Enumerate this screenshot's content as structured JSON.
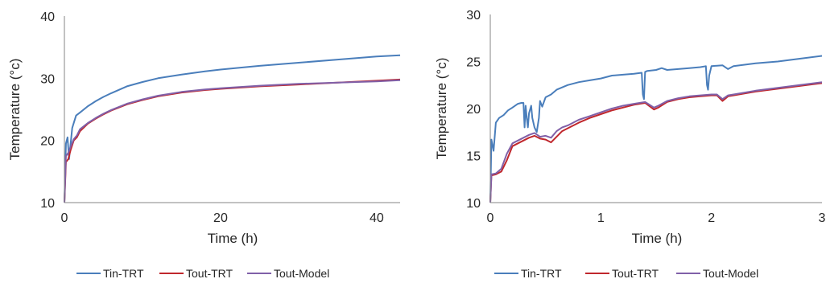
{
  "chart_data": [
    {
      "type": "line",
      "xlabel": "Time (h)",
      "ylabel": "Temperature (°c)",
      "xlim": [
        0,
        43
      ],
      "ylim": [
        10,
        40
      ],
      "xticks": [
        0,
        20,
        40
      ],
      "yticks": [
        10,
        20,
        30,
        40
      ],
      "grid": false,
      "legend_position": "bottom",
      "series": [
        {
          "name": "Tin-TRT",
          "color": "#4a7ebb",
          "x": [
            0,
            0.2,
            0.4,
            0.6,
            1.0,
            1.5,
            2,
            3,
            4,
            5,
            6,
            8,
            10,
            12,
            15,
            18,
            20,
            25,
            30,
            35,
            40,
            43
          ],
          "y": [
            10,
            19.5,
            20.5,
            17,
            22,
            24,
            24.5,
            25.5,
            26.3,
            27,
            27.6,
            28.7,
            29.4,
            30,
            30.6,
            31.1,
            31.4,
            32,
            32.5,
            33,
            33.5,
            33.7
          ]
        },
        {
          "name": "Tout-TRT",
          "color": "#c0272d",
          "x": [
            0,
            0.2,
            0.5,
            0.8,
            1.2,
            1.6,
            2,
            3,
            4,
            5,
            6,
            8,
            10,
            12,
            15,
            18,
            20,
            25,
            30,
            35,
            40,
            43
          ],
          "y": [
            10,
            16.5,
            17,
            18.5,
            20,
            20.5,
            21.5,
            22.7,
            23.5,
            24.2,
            24.8,
            25.8,
            26.5,
            27.1,
            27.7,
            28.1,
            28.3,
            28.7,
            29,
            29.3,
            29.6,
            29.8
          ]
        },
        {
          "name": "Tout-Model",
          "color": "#8060a8",
          "x": [
            0,
            0.2,
            0.5,
            0.8,
            1.2,
            1.6,
            2,
            3,
            4,
            5,
            6,
            8,
            10,
            12,
            15,
            18,
            20,
            25,
            30,
            35,
            40,
            43
          ],
          "y": [
            10,
            17.5,
            18,
            19,
            20.2,
            20.8,
            21.8,
            22.8,
            23.6,
            24.3,
            24.9,
            25.9,
            26.6,
            27.2,
            27.8,
            28.2,
            28.4,
            28.8,
            29.1,
            29.3,
            29.5,
            29.7
          ]
        }
      ]
    },
    {
      "type": "line",
      "xlabel": "Time (h)",
      "ylabel": "Temperature (°c)",
      "xlim": [
        0,
        3
      ],
      "ylim": [
        10,
        30
      ],
      "xticks": [
        0,
        1,
        2,
        3
      ],
      "yticks": [
        10,
        15,
        20,
        25,
        30
      ],
      "grid": false,
      "legend_position": "bottom",
      "series": [
        {
          "name": "Tin-TRT",
          "color": "#4a7ebb",
          "x": [
            0,
            0.01,
            0.03,
            0.05,
            0.08,
            0.12,
            0.16,
            0.2,
            0.25,
            0.28,
            0.3,
            0.31,
            0.32,
            0.33,
            0.34,
            0.35,
            0.37,
            0.38,
            0.4,
            0.42,
            0.44,
            0.45,
            0.47,
            0.5,
            0.55,
            0.6,
            0.7,
            0.8,
            0.9,
            1.0,
            1.1,
            1.2,
            1.3,
            1.37,
            1.38,
            1.39,
            1.4,
            1.42,
            1.5,
            1.55,
            1.6,
            1.7,
            1.8,
            1.9,
            1.95,
            1.96,
            1.97,
            1.98,
            2.0,
            2.1,
            2.15,
            2.2,
            2.4,
            2.6,
            2.8,
            3.0
          ],
          "y": [
            10,
            16.7,
            15.5,
            18.5,
            19,
            19.3,
            19.8,
            20.1,
            20.5,
            20.6,
            20.6,
            18.0,
            20.3,
            19.0,
            18.0,
            19.5,
            20.3,
            19.0,
            18.0,
            17.5,
            19.0,
            20.8,
            20.2,
            21.2,
            21.5,
            22.0,
            22.5,
            22.8,
            23.0,
            23.2,
            23.5,
            23.6,
            23.7,
            23.8,
            21.5,
            21.0,
            23.9,
            24.0,
            24.1,
            24.3,
            24.1,
            24.2,
            24.3,
            24.4,
            24.5,
            22.5,
            22.0,
            23.5,
            24.5,
            24.6,
            24.2,
            24.5,
            24.8,
            25.0,
            25.3,
            25.6
          ]
        },
        {
          "name": "Tout-TRT",
          "color": "#c0272d",
          "x": [
            0,
            0.01,
            0.05,
            0.1,
            0.15,
            0.2,
            0.25,
            0.3,
            0.35,
            0.4,
            0.45,
            0.5,
            0.55,
            0.6,
            0.65,
            0.7,
            0.8,
            0.9,
            1.0,
            1.1,
            1.2,
            1.3,
            1.4,
            1.48,
            1.52,
            1.6,
            1.7,
            1.8,
            1.9,
            2.0,
            2.05,
            2.1,
            2.15,
            2.2,
            2.4,
            2.6,
            2.8,
            3.0
          ],
          "y": [
            10,
            12.9,
            13.0,
            13.3,
            14.5,
            16.0,
            16.3,
            16.6,
            16.9,
            17.1,
            16.8,
            16.7,
            16.4,
            17.0,
            17.6,
            17.9,
            18.5,
            19.0,
            19.4,
            19.8,
            20.1,
            20.4,
            20.6,
            19.9,
            20.1,
            20.7,
            21.0,
            21.2,
            21.3,
            21.4,
            21.4,
            20.8,
            21.3,
            21.4,
            21.8,
            22.1,
            22.4,
            22.7
          ]
        },
        {
          "name": "Tout-Model",
          "color": "#8060a8",
          "x": [
            0,
            0.01,
            0.05,
            0.1,
            0.15,
            0.2,
            0.25,
            0.3,
            0.35,
            0.4,
            0.45,
            0.5,
            0.55,
            0.6,
            0.65,
            0.7,
            0.8,
            0.9,
            1.0,
            1.1,
            1.2,
            1.3,
            1.4,
            1.48,
            1.52,
            1.6,
            1.7,
            1.8,
            1.9,
            2.0,
            2.05,
            2.1,
            2.15,
            2.2,
            2.4,
            2.6,
            2.8,
            3.0
          ],
          "y": [
            10,
            13.0,
            13.1,
            13.6,
            15.2,
            16.3,
            16.6,
            16.9,
            17.2,
            17.4,
            17.0,
            17.1,
            16.9,
            17.6,
            18.0,
            18.2,
            18.8,
            19.2,
            19.6,
            20.0,
            20.3,
            20.5,
            20.7,
            20.1,
            20.3,
            20.8,
            21.1,
            21.3,
            21.4,
            21.5,
            21.5,
            21.0,
            21.4,
            21.5,
            21.9,
            22.2,
            22.5,
            22.8
          ]
        }
      ]
    }
  ]
}
